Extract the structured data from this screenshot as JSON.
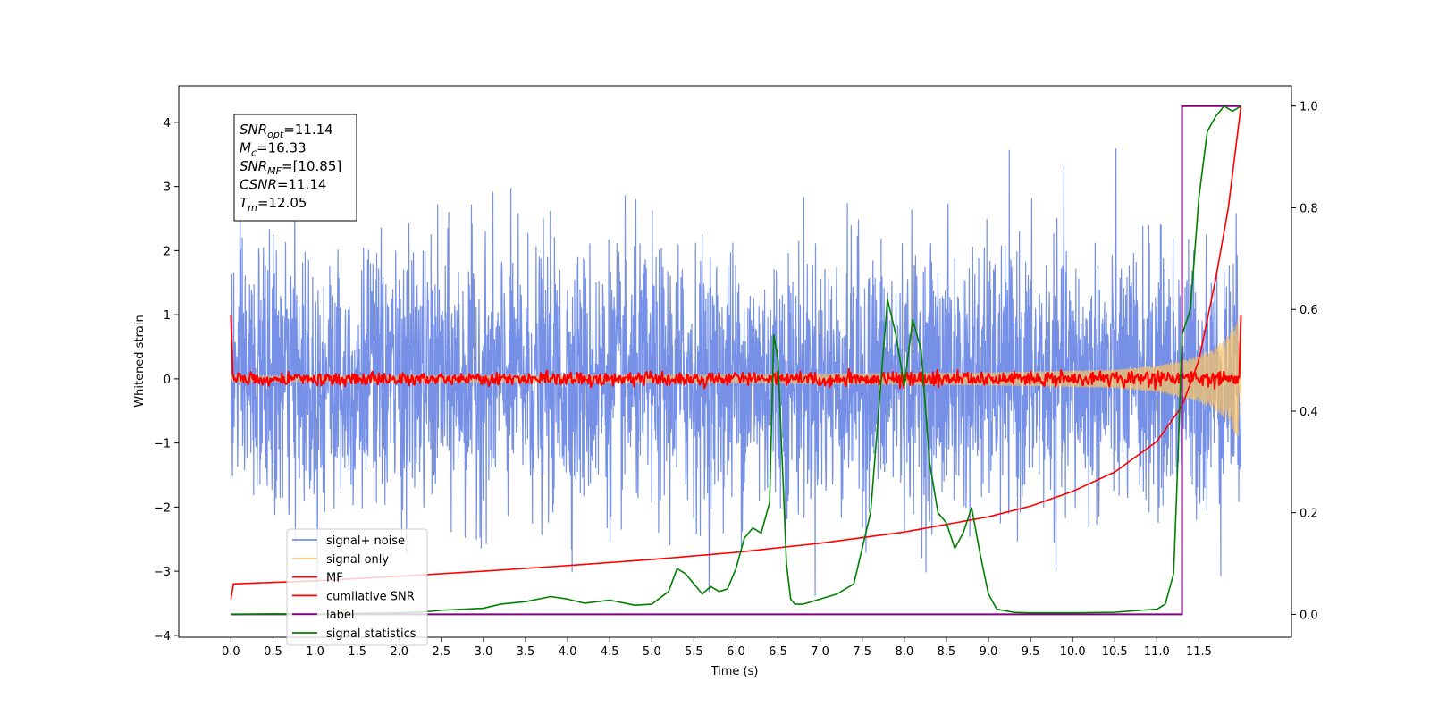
{
  "chart_data": {
    "type": "line",
    "xlabel": "Time (s)",
    "ylabel": "Whitened strain",
    "xlim": [
      -0.62,
      12.6
    ],
    "ylim": [
      -4.03,
      4.57
    ],
    "y2lim": [
      -0.045,
      1.04
    ],
    "x_ticks": [
      0.0,
      0.5,
      1.0,
      1.5,
      2.0,
      2.5,
      3.0,
      3.5,
      4.0,
      4.5,
      5.0,
      5.5,
      6.0,
      6.5,
      7.0,
      7.5,
      8.0,
      8.5,
      9.0,
      9.5,
      10.0,
      10.5,
      11.0,
      11.5
    ],
    "x_tick_labels": [
      "0.0",
      "0.5",
      "1.0",
      "1.5",
      "2.0",
      "2.5",
      "3.0",
      "3.5",
      "4.0",
      "4.5",
      "5.0",
      "5.5",
      "6.0",
      "6.5",
      "7.0",
      "7.5",
      "8.0",
      "8.5",
      "9.0",
      "9.5",
      "10.0",
      "10.5",
      "11.0",
      "11.5"
    ],
    "y_ticks": [
      -4,
      -3,
      -2,
      -1,
      0,
      1,
      2,
      3,
      4
    ],
    "y_tick_labels": [
      "−4",
      "−3",
      "−2",
      "−1",
      "0",
      "1",
      "2",
      "3",
      "4"
    ],
    "y2_ticks": [
      0.0,
      0.2,
      0.4,
      0.6,
      0.8,
      1.0
    ],
    "y2_tick_labels": [
      "0.0",
      "0.2",
      "0.4",
      "0.6",
      "0.8",
      "1.0"
    ],
    "grid": false,
    "legend_position": "lower-left",
    "info_box": {
      "position": "upper-left",
      "lines": [
        {
          "sym": "SNR",
          "sub": "opt",
          "val": "=11.14"
        },
        {
          "sym": "M",
          "sub": "c",
          "val": "=16.33"
        },
        {
          "sym": "SNR",
          "sub": "MF",
          "val": "=[10.85]"
        },
        {
          "sym": "CSNR",
          "sub": "",
          "val": "=11.14"
        },
        {
          "sym": "T",
          "sub": "m",
          "val": "=12.05"
        }
      ]
    },
    "series": [
      {
        "name": "signal+ noise",
        "color": "#7590e6",
        "axis": "left",
        "kind": "noise",
        "t_start": 0.0,
        "t_end": 12.0,
        "sigma": 1.0,
        "range": [
          -3.6,
          4.15
        ]
      },
      {
        "name": "signal only",
        "color": "#f5c26b",
        "axis": "left",
        "kind": "chirp",
        "t_start": 0.0,
        "t_end": 12.0,
        "envelope": {
          "x": [
            0.0,
            6.0,
            9.0,
            10.5,
            11.0,
            11.5,
            11.8,
            12.0
          ],
          "y": [
            0.05,
            0.07,
            0.1,
            0.14,
            0.2,
            0.35,
            0.6,
            1.0
          ]
        }
      },
      {
        "name": "MF",
        "color": "#ff0000",
        "axis": "left",
        "kind": "mf",
        "t_start": 0.0,
        "t_end": 12.0,
        "start_value": 1.0,
        "noise_amplitude": 0.08,
        "peak_value": 1.0
      },
      {
        "name": "cumilative SNR",
        "color": "#ff0000",
        "axis": "right",
        "x": [
          0.0,
          0.02,
          1.0,
          2.0,
          3.0,
          4.0,
          5.0,
          6.0,
          7.0,
          8.0,
          9.0,
          9.5,
          10.0,
          10.5,
          11.0,
          11.3,
          11.5,
          11.7,
          11.85,
          12.0
        ],
        "y": [
          0.03,
          0.06,
          0.066,
          0.075,
          0.085,
          0.096,
          0.108,
          0.122,
          0.14,
          0.162,
          0.192,
          0.213,
          0.242,
          0.28,
          0.34,
          0.41,
          0.5,
          0.66,
          0.8,
          1.0
        ]
      },
      {
        "name": "label",
        "color": "#800080",
        "axis": "right",
        "x": [
          0.0,
          11.3,
          11.3,
          12.0
        ],
        "y": [
          0.0,
          0.0,
          1.0,
          1.0
        ]
      },
      {
        "name": "signal statistics",
        "color": "#008000",
        "axis": "right",
        "x": [
          0.0,
          0.5,
          1.0,
          1.5,
          2.0,
          2.3,
          2.5,
          3.0,
          3.2,
          3.5,
          3.8,
          4.0,
          4.2,
          4.5,
          4.8,
          5.0,
          5.2,
          5.3,
          5.4,
          5.5,
          5.6,
          5.7,
          5.8,
          5.9,
          6.0,
          6.1,
          6.2,
          6.3,
          6.4,
          6.45,
          6.5,
          6.55,
          6.6,
          6.65,
          6.7,
          6.8,
          7.0,
          7.2,
          7.4,
          7.6,
          7.8,
          7.9,
          8.0,
          8.1,
          8.2,
          8.3,
          8.4,
          8.5,
          8.6,
          8.7,
          8.8,
          8.9,
          9.0,
          9.1,
          9.3,
          9.5,
          10.0,
          10.5,
          10.8,
          11.0,
          11.1,
          11.2,
          11.25,
          11.3,
          11.4,
          11.5,
          11.6,
          11.7,
          11.8,
          11.9,
          12.0
        ],
        "y": [
          0.0,
          0.001,
          0.0,
          0.002,
          0.003,
          0.005,
          0.008,
          0.012,
          0.02,
          0.025,
          0.035,
          0.03,
          0.022,
          0.028,
          0.018,
          0.02,
          0.045,
          0.09,
          0.08,
          0.06,
          0.04,
          0.055,
          0.045,
          0.05,
          0.09,
          0.15,
          0.17,
          0.16,
          0.22,
          0.55,
          0.5,
          0.3,
          0.1,
          0.03,
          0.02,
          0.02,
          0.03,
          0.04,
          0.06,
          0.2,
          0.62,
          0.55,
          0.45,
          0.58,
          0.52,
          0.3,
          0.2,
          0.18,
          0.13,
          0.16,
          0.21,
          0.12,
          0.04,
          0.01,
          0.004,
          0.003,
          0.003,
          0.004,
          0.008,
          0.01,
          0.02,
          0.08,
          0.3,
          0.55,
          0.6,
          0.82,
          0.95,
          0.98,
          1.0,
          0.99,
          1.0
        ]
      }
    ]
  }
}
